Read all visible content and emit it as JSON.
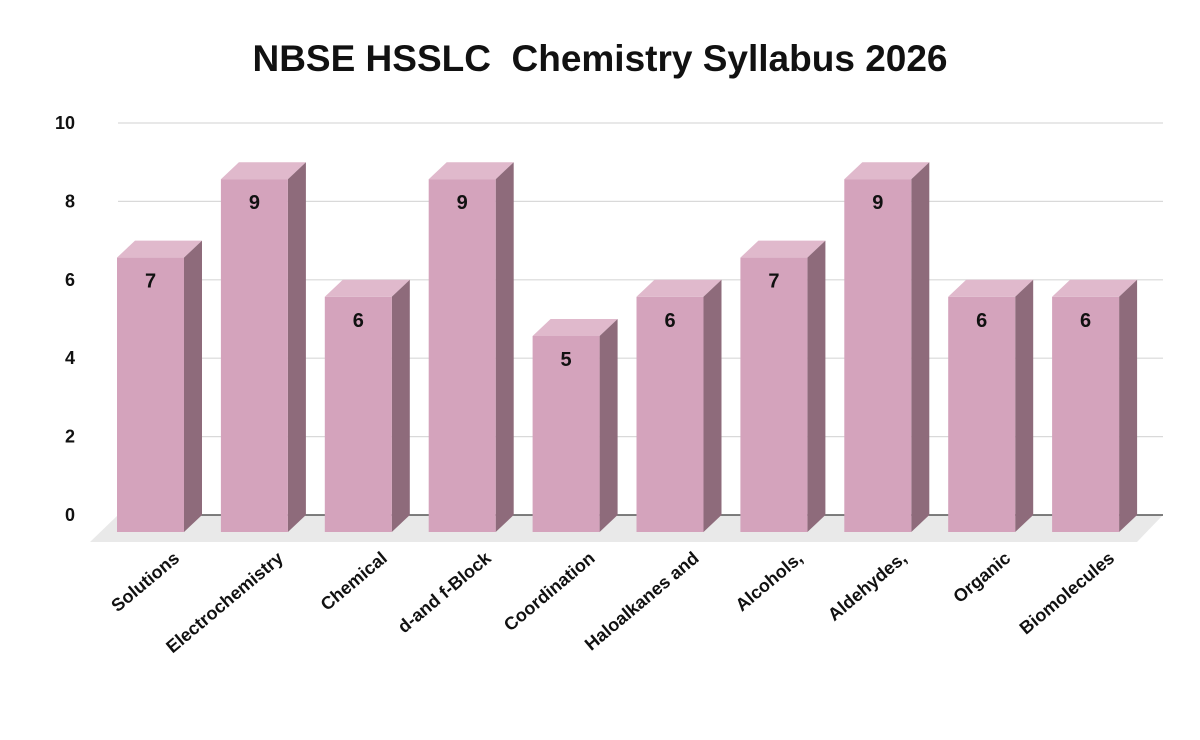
{
  "chart_data": {
    "type": "bar",
    "title": "NBSE HSSLC  Chemistry Syllabus 2026",
    "categories": [
      "Solutions",
      "Electrochemistry",
      "Chemical",
      "d-and f-Block",
      "Coordination",
      "Haloalkanes and",
      "Alcohols,",
      "Aldehydes,",
      "Organic",
      "Biomolecules"
    ],
    "values": [
      7,
      9,
      6,
      9,
      5,
      6,
      7,
      9,
      6,
      6
    ],
    "data_labels": [
      "7",
      "9",
      "6",
      "9",
      "5",
      "6",
      "7",
      "9",
      "6",
      "6"
    ],
    "ylim": [
      0,
      10
    ],
    "yticks": [
      0,
      2,
      4,
      6,
      8,
      10
    ],
    "ytick_labels": [
      "0",
      "2",
      "4",
      "6",
      "8",
      "10"
    ],
    "grid": true,
    "style": "3d-column",
    "colors": {
      "bar_front": "#d4a3bc",
      "bar_top": "#e0b9cc",
      "bar_side": "#8e6b7b",
      "floor": "#e9e9e9",
      "grid": "#d9d9d9",
      "text": "#111111"
    }
  }
}
